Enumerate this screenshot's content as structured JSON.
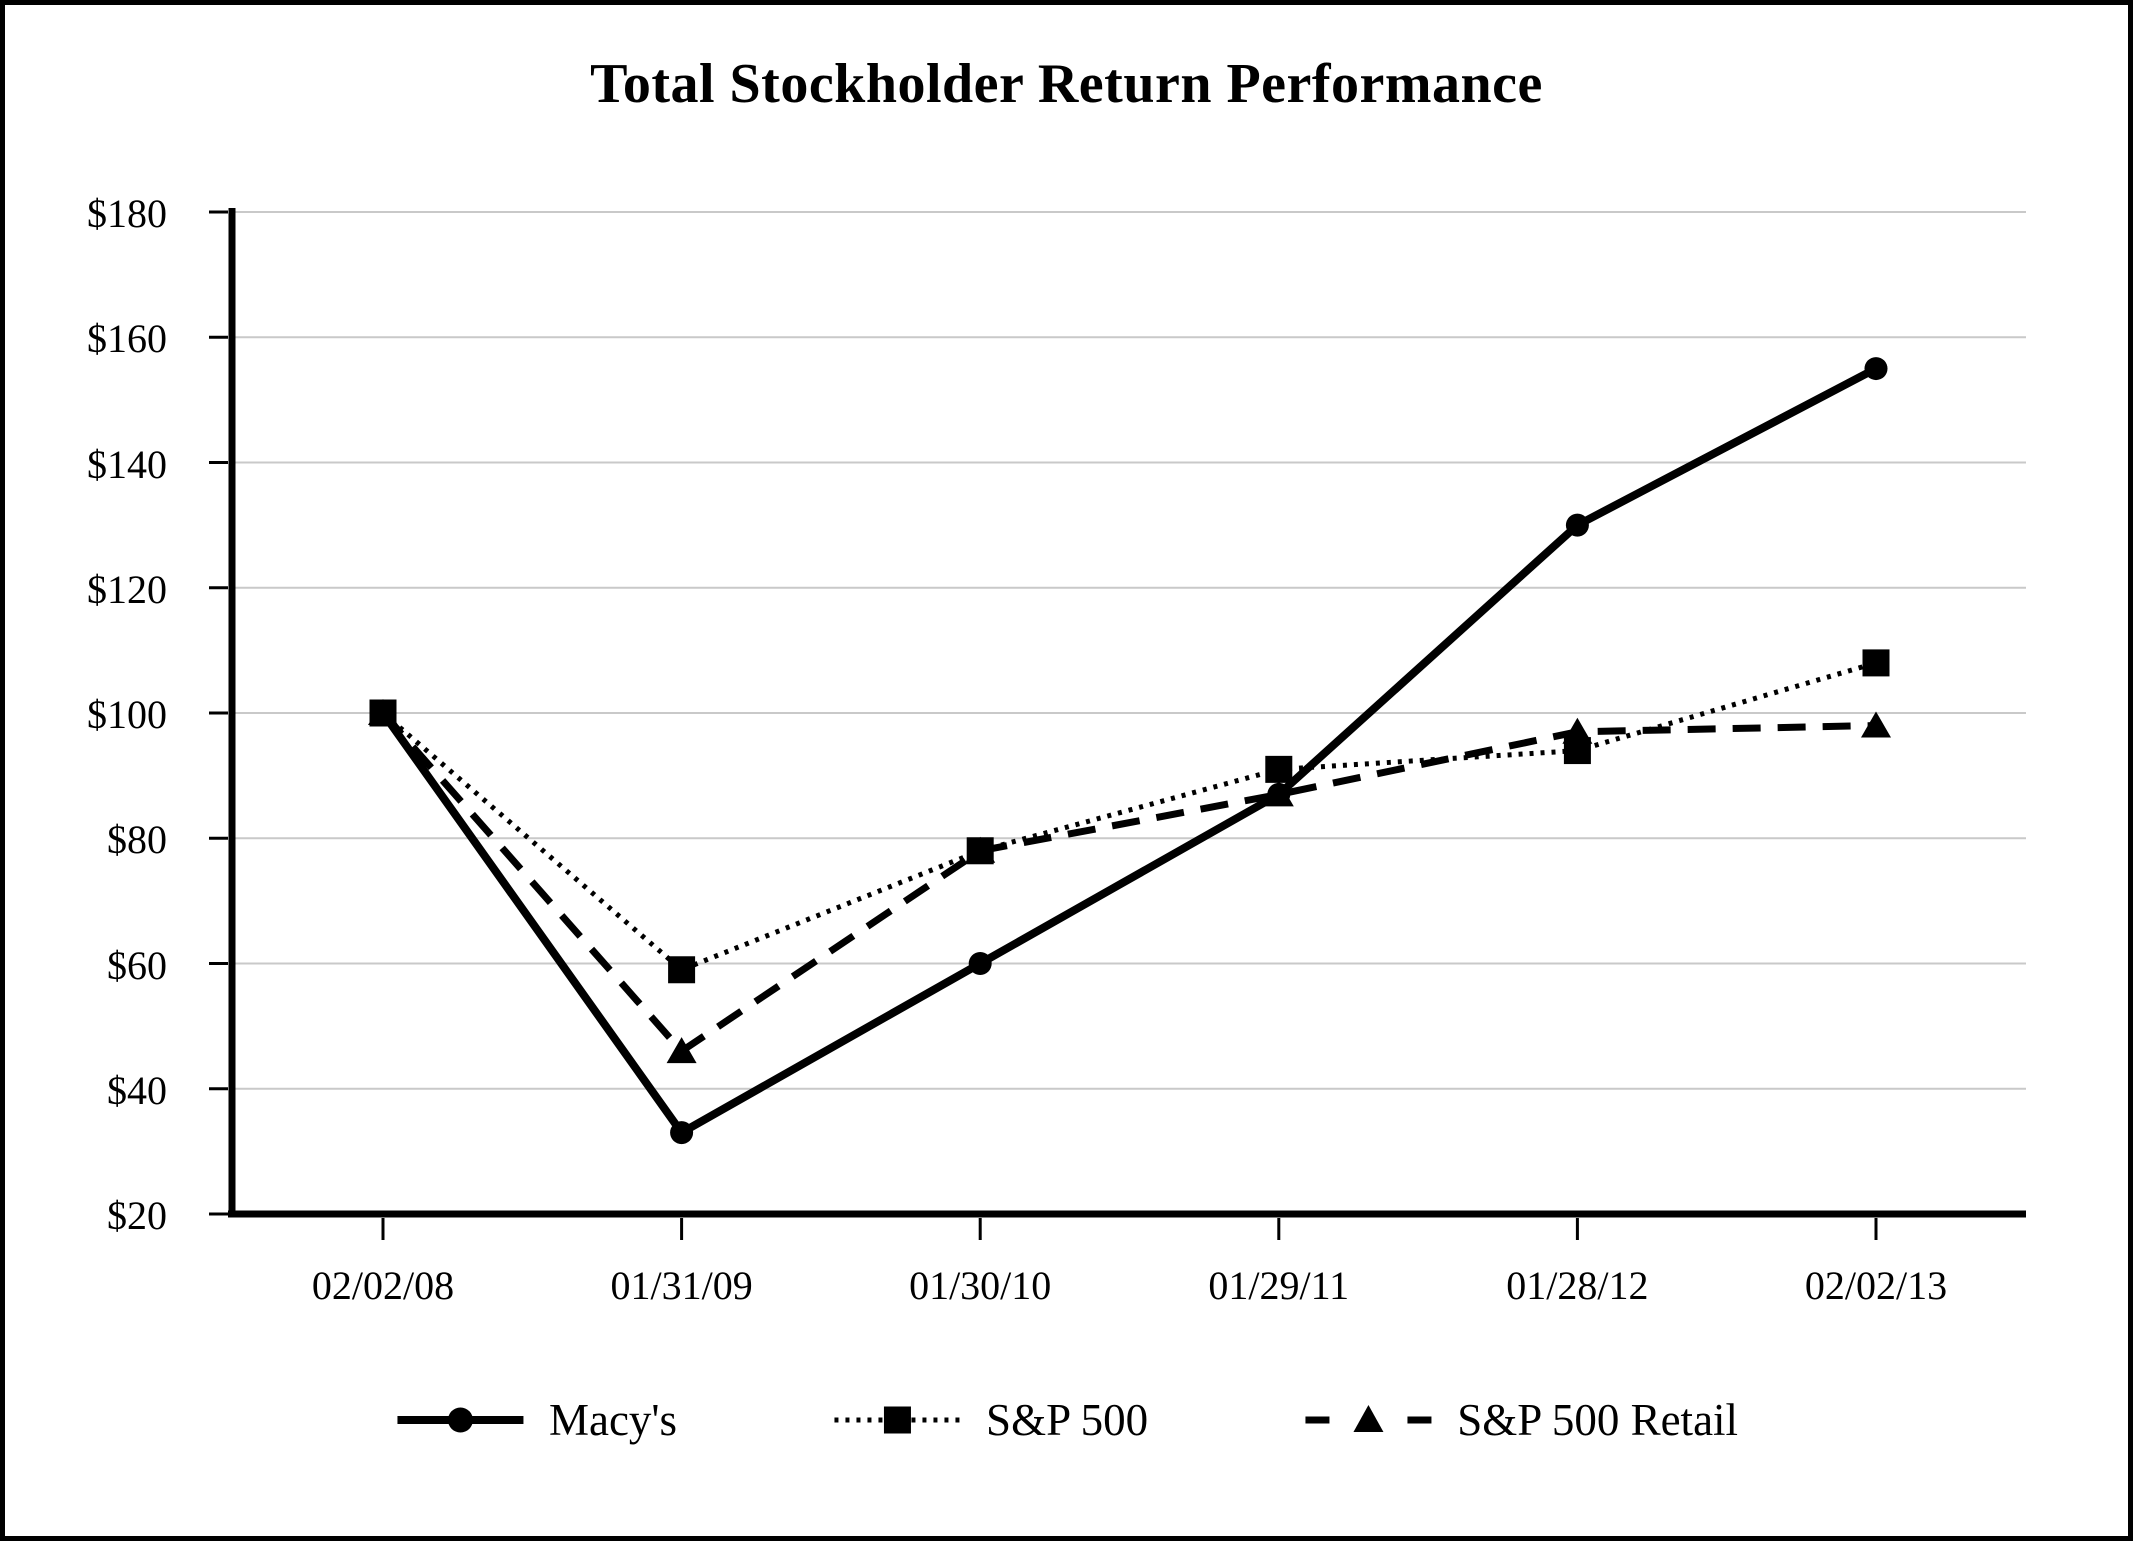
{
  "chart_data": {
    "type": "line",
    "title": "Total Stockholder Return Performance",
    "categories": [
      "02/02/08",
      "01/31/09",
      "01/30/10",
      "01/29/11",
      "01/28/12",
      "02/02/13"
    ],
    "series": [
      {
        "name": "Macy's",
        "marker": "circle",
        "line_style": "solid",
        "values": [
          100,
          33,
          60,
          87,
          130,
          155
        ]
      },
      {
        "name": "S&P 500",
        "marker": "square",
        "line_style": "dotted",
        "values": [
          100,
          59,
          78,
          91,
          94,
          108
        ]
      },
      {
        "name": "S&P 500 Retail",
        "marker": "triangle",
        "line_style": "dashed",
        "values": [
          100,
          46,
          78,
          87,
          97,
          98
        ]
      }
    ],
    "y_ticks": [
      "$20",
      "$40",
      "$60",
      "$80",
      "$100",
      "$120",
      "$140",
      "$160",
      "$180"
    ],
    "ylim": [
      20,
      180
    ],
    "y_tick_step": 20,
    "currency_prefix": "$",
    "grid": "horizontal",
    "legend_position": "bottom",
    "colors": {
      "line": "#000000",
      "grid": "#c9c9c9",
      "background": "#ffffff",
      "frame": "#000000"
    }
  }
}
